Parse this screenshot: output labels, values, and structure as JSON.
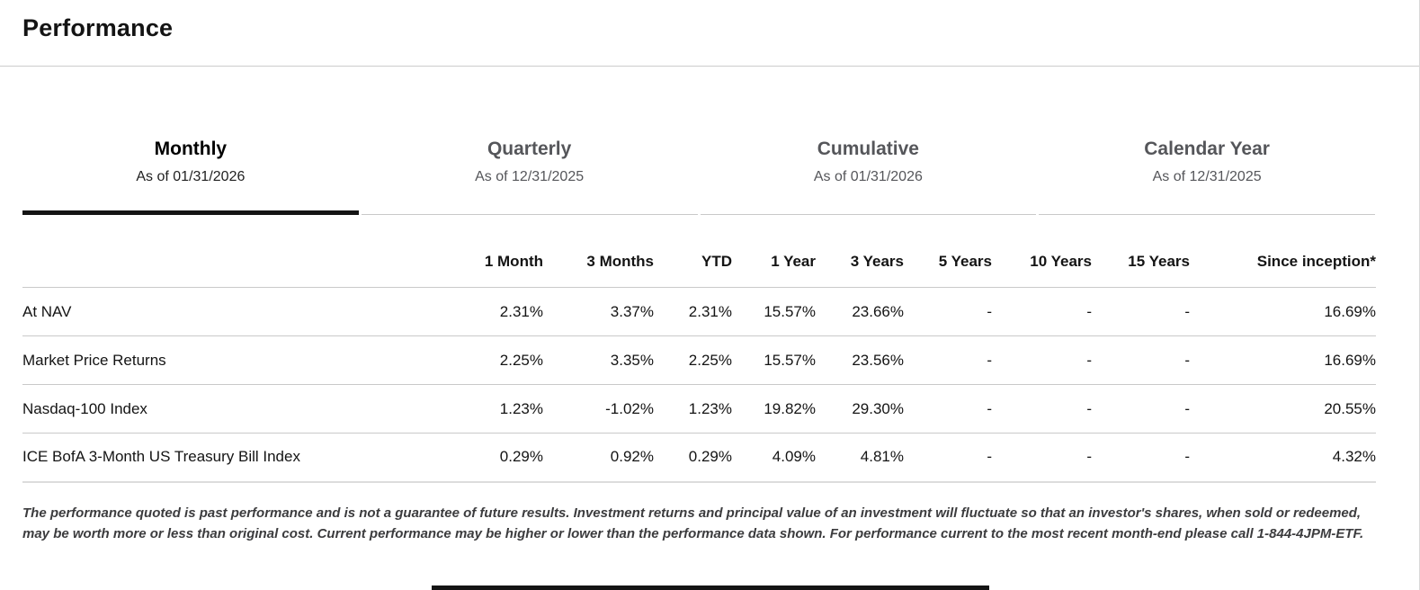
{
  "page": {
    "title": "Performance"
  },
  "tabs": [
    {
      "label": "Monthly",
      "as_of": "As of 01/31/2026",
      "active": true
    },
    {
      "label": "Quarterly",
      "as_of": "As of 12/31/2025",
      "active": false
    },
    {
      "label": "Cumulative",
      "as_of": "As of 01/31/2026",
      "active": false
    },
    {
      "label": "Calendar Year",
      "as_of": "As of 12/31/2025",
      "active": false
    }
  ],
  "table": {
    "columns": [
      "1 Month",
      "3 Months",
      "YTD",
      "1 Year",
      "3 Years",
      "5 Years",
      "10 Years",
      "15 Years",
      "Since inception*"
    ],
    "rows": [
      {
        "name": "At NAV",
        "values": [
          "2.31%",
          "3.37%",
          "2.31%",
          "15.57%",
          "23.66%",
          "-",
          "-",
          "-",
          "16.69%"
        ]
      },
      {
        "name": "Market Price Returns",
        "values": [
          "2.25%",
          "3.35%",
          "2.25%",
          "15.57%",
          "23.56%",
          "-",
          "-",
          "-",
          "16.69%"
        ]
      },
      {
        "name": "Nasdaq-100 Index",
        "values": [
          "1.23%",
          "-1.02%",
          "1.23%",
          "19.82%",
          "29.30%",
          "-",
          "-",
          "-",
          "20.55%"
        ]
      },
      {
        "name": "ICE BofA 3-Month US Treasury Bill Index",
        "values": [
          "0.29%",
          "0.92%",
          "0.29%",
          "4.09%",
          "4.81%",
          "-",
          "-",
          "-",
          "4.32%"
        ]
      }
    ]
  },
  "disclaimer": "The performance quoted is past performance and is not a guarantee of future results. Investment returns and principal value of an investment will fluctuate so that an investor's shares, when sold or redeemed, may be worth more or less than original cost. Current performance may be higher or lower than the performance data shown. For performance current to the most recent month-end please call 1-844-4JPM-ETF."
}
